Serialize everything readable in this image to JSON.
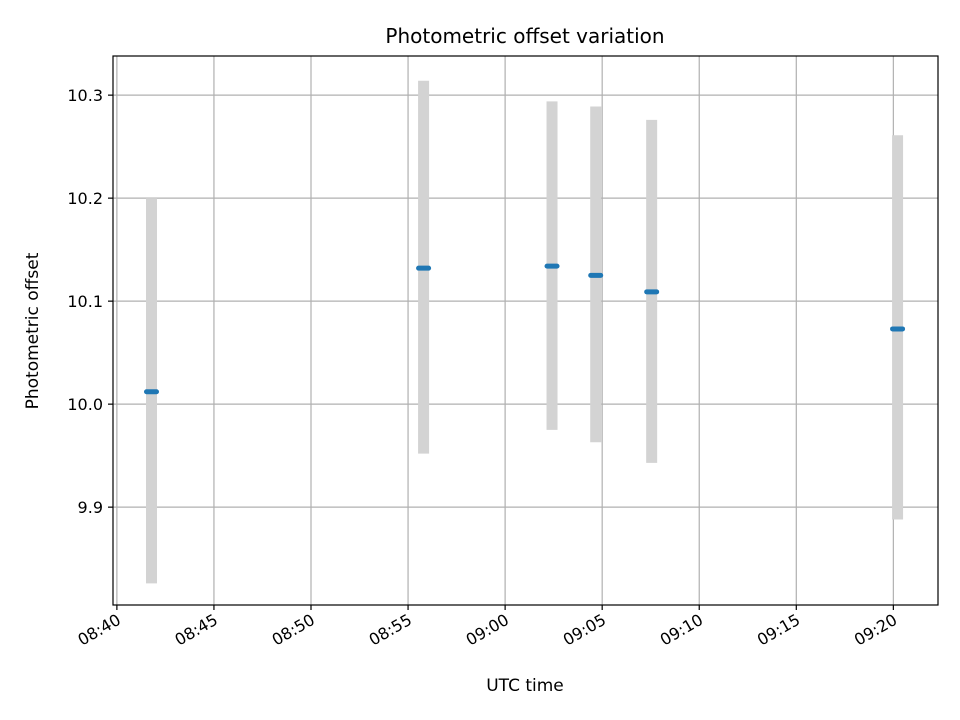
{
  "chart_data": {
    "type": "scatter",
    "title": "Photometric offset variation",
    "xlabel": "UTC time",
    "ylabel": "Photometric offset",
    "grid": true,
    "x_tick_labels": [
      "08:40",
      "08:45",
      "08:50",
      "08:55",
      "09:00",
      "09:05",
      "09:10",
      "09:15",
      "09:20"
    ],
    "y_tick_labels": [
      "9.9",
      "10.0",
      "10.1",
      "10.2",
      "10.3"
    ],
    "xlim": [
      "08:39.8",
      "09:22.3"
    ],
    "ylim": [
      9.805,
      10.338
    ],
    "points": [
      {
        "time": "08:41:47",
        "value": 10.012,
        "low": 9.826,
        "high": 10.2
      },
      {
        "time": "08:55:48",
        "value": 10.132,
        "low": 9.952,
        "high": 10.314
      },
      {
        "time": "09:02:25",
        "value": 10.134,
        "low": 9.975,
        "high": 10.294
      },
      {
        "time": "09:04:40",
        "value": 10.125,
        "low": 9.963,
        "high": 10.289
      },
      {
        "time": "09:07:33",
        "value": 10.109,
        "low": 9.943,
        "high": 10.276
      },
      {
        "time": "09:20:13",
        "value": 10.073,
        "low": 9.888,
        "high": 10.261
      }
    ],
    "colors": {
      "point": "#1f77b4",
      "errorbar": "#d3d3d3",
      "grid": "#b0b0b0",
      "axes": "#000000"
    }
  }
}
